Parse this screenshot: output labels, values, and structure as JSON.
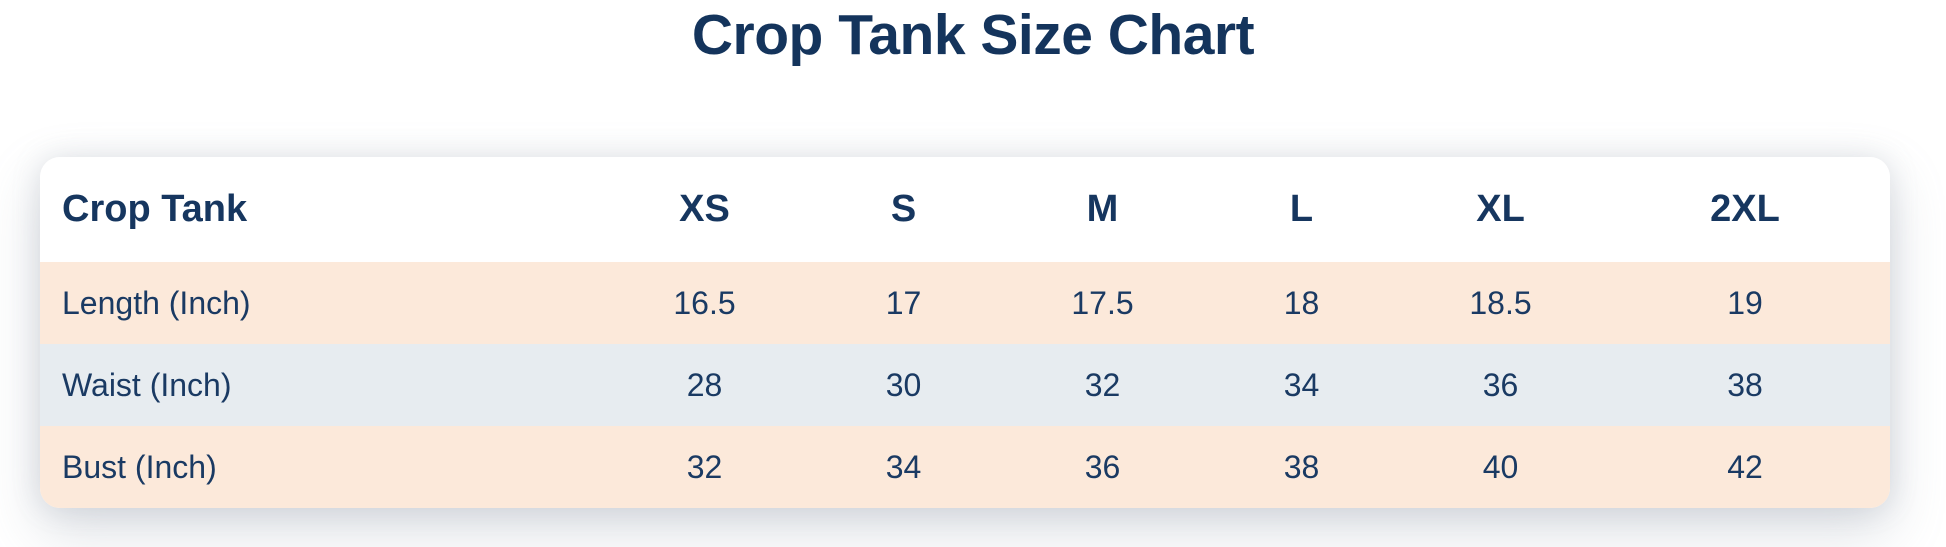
{
  "page": {
    "title": "Crop Tank Size Chart"
  },
  "colors": {
    "title_navy": "#14345C",
    "text_navy": "#1A3A63",
    "row_peach": "#FCE9DA",
    "row_blue_gray": "#E7ECF0",
    "card_background": "#FFFFFF"
  },
  "chart_data": {
    "type": "table",
    "title": "Crop Tank Size Chart",
    "columns": [
      "Crop Tank",
      "XS",
      "S",
      "M",
      "L",
      "XL",
      "2XL"
    ],
    "rows": [
      [
        "Length (Inch)",
        16.5,
        17,
        17.5,
        18,
        18.5,
        19
      ],
      [
        "Waist (Inch)",
        28,
        30,
        32,
        34,
        36,
        38
      ],
      [
        "Bust (Inch)",
        32,
        34,
        36,
        38,
        40,
        42
      ]
    ],
    "layout_hints": {
      "header_row_background": "white",
      "body_row_backgrounds": [
        "peach",
        "blue-gray",
        "peach"
      ],
      "first_column_alignment": "left",
      "value_alignment": "center"
    }
  }
}
